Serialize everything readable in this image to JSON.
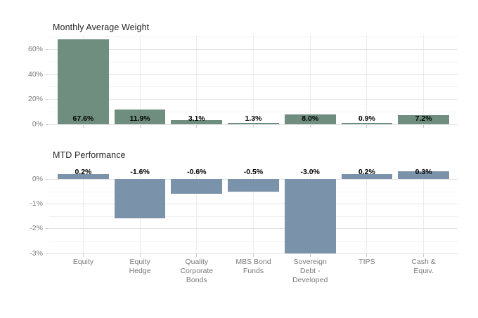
{
  "colors": {
    "bar_green": "#6F8E80",
    "bar_blue": "#7A92AA",
    "grid_major": "#e4e4e4",
    "grid_minor": "#f1f1f1",
    "grid_vertical": "#ececec",
    "tick_mark": "#cccccc",
    "axis_text": "#7a7a7a",
    "title_text": "#262626",
    "value_text": "#000000",
    "background": "#ffffff"
  },
  "chart_data": [
    {
      "type": "bar",
      "title": "Monthly Average Weight",
      "categories": [
        "Equity",
        "Equity\nHedge",
        "Quality\nCorporate\nBonds",
        "MBS Bond\nFunds",
        "Sovereign\nDebt -\nDeveloped",
        "TIPS",
        "Cash &\nEquiv."
      ],
      "values": [
        67.6,
        11.9,
        3.1,
        1.3,
        8.0,
        0.9,
        7.2
      ],
      "value_labels": [
        "67.6%",
        "11.9%",
        "3.1%",
        "1.3%",
        "8.0%",
        "0.9%",
        "7.2%"
      ],
      "y_ticks": [
        0,
        20,
        40,
        60
      ],
      "y_tick_labels": [
        "0%",
        "20%",
        "40%",
        "60%"
      ],
      "y_minor_ticks": [
        10,
        30,
        50,
        70
      ],
      "ylim": [
        0,
        71
      ],
      "ylabel": "",
      "xlabel": "",
      "bar_color": "#6F8E80",
      "grid": true,
      "legend": false
    },
    {
      "type": "bar",
      "title": "MTD Performance",
      "categories": [
        "Equity",
        "Equity\nHedge",
        "Quality\nCorporate\nBonds",
        "MBS Bond\nFunds",
        "Sovereign\nDebt -\nDeveloped",
        "TIPS",
        "Cash &\nEquiv."
      ],
      "values": [
        0.2,
        -1.6,
        -0.6,
        -0.5,
        -3.0,
        0.2,
        0.3
      ],
      "value_labels": [
        "0.2%",
        "-1.6%",
        "-0.6%",
        "-0.5%",
        "-3.0%",
        "0.2%",
        "0.3%"
      ],
      "y_ticks": [
        0,
        -1,
        -2,
        -3
      ],
      "y_tick_labels": [
        "0%",
        "-1%",
        "-2%",
        "-3%"
      ],
      "y_minor_ticks": [
        -0.5,
        -1.5,
        -2.5
      ],
      "ylim": [
        -3.05,
        0.45
      ],
      "ylabel": "",
      "xlabel": "",
      "bar_color": "#7A92AA",
      "grid": true,
      "legend": false
    }
  ]
}
